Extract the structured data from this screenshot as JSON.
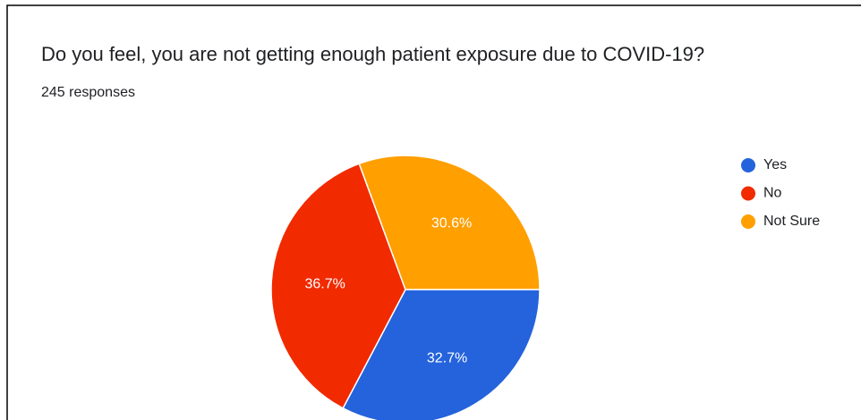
{
  "chart_data": {
    "type": "pie",
    "title": "Do you feel, you are not getting enough patient exposure due to COVID-19?",
    "subtitle": "245 responses",
    "categories": [
      "Yes",
      "No",
      "Not Sure"
    ],
    "values": [
      32.7,
      36.7,
      30.6
    ],
    "value_labels": [
      "32.7%",
      "36.7%",
      "30.6%"
    ],
    "colors": [
      "#2463dc",
      "#f12a00",
      "#ff9f00"
    ],
    "legend": "right"
  }
}
